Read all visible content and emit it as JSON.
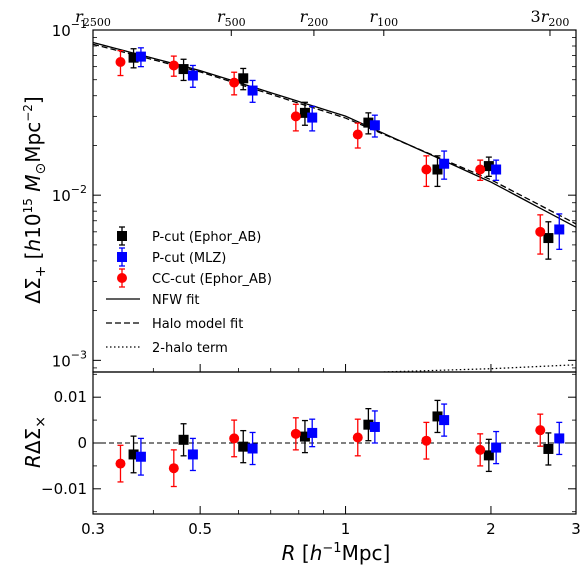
{
  "chart_data": [
    {
      "type": "scatter",
      "panel": "top",
      "xscale": "log",
      "yscale": "log",
      "xlim": [
        0.3,
        3.0
      ],
      "ylim": [
        0.00085,
        0.1
      ],
      "xticks": [
        {
          "value": 0.3,
          "label": "0.3"
        },
        {
          "value": 0.5,
          "label": "0.5"
        },
        {
          "value": 1,
          "label": "1"
        },
        {
          "value": 2,
          "label": "2"
        },
        {
          "value": 3,
          "label": "3"
        }
      ],
      "yticks": [
        {
          "value": 0.1,
          "base": "10",
          "exp": "−1"
        },
        {
          "value": 0.01,
          "base": "10",
          "exp": "−2"
        },
        {
          "value": 0.001,
          "base": "10",
          "exp": "−3"
        }
      ],
      "ylabel": {
        "delta_sigma": "ΔΣ",
        "subscript": "+",
        "unit_open": "[",
        "h": "h",
        "ten": "10",
        "exp15": "15",
        "m": "M",
        "odot": "⊙",
        "mpc": "Mpc",
        "exp_m2": "−2",
        "unit_close": "]"
      },
      "top_axis": [
        {
          "value": 0.3,
          "prefix": "",
          "main": "r",
          "sub": "2500"
        },
        {
          "value": 0.58,
          "prefix": "",
          "main": "r",
          "sub": "500"
        },
        {
          "value": 0.86,
          "prefix": "",
          "main": "r",
          "sub": "200"
        },
        {
          "value": 1.2,
          "prefix": "",
          "main": "r",
          "sub": "100"
        },
        {
          "value": 2.65,
          "prefix": "3",
          "main": "r",
          "sub": "200"
        }
      ],
      "series": [
        {
          "name": "P-cut (Ephor_AB)",
          "marker": "square",
          "color": "#000000",
          "points": [
            [
              0.364,
              0.068,
              0.009
            ],
            [
              0.462,
              0.058,
              0.0085
            ],
            [
              0.614,
              0.051,
              0.0075
            ],
            [
              0.824,
              0.0315,
              0.005
            ],
            [
              1.115,
              0.0275,
              0.004
            ],
            [
              1.55,
              0.0143,
              0.003
            ],
            [
              1.98,
              0.015,
              0.002
            ],
            [
              2.63,
              0.0055,
              0.0014
            ]
          ]
        },
        {
          "name": "P-cut (MLZ)",
          "marker": "square",
          "color": "#0000ff",
          "points": [
            [
              0.377,
              0.069,
              0.009
            ],
            [
              0.483,
              0.053,
              0.008
            ],
            [
              0.642,
              0.043,
              0.0065
            ],
            [
              0.853,
              0.0295,
              0.005
            ],
            [
              1.15,
              0.0265,
              0.004
            ],
            [
              1.6,
              0.0155,
              0.003
            ],
            [
              2.05,
              0.0143,
              0.002
            ],
            [
              2.77,
              0.0062,
              0.0015
            ]
          ]
        },
        {
          "name": "CC-cut (Ephor_AB)",
          "marker": "circle",
          "color": "#ff0000",
          "points": [
            [
              0.342,
              0.064,
              0.011
            ],
            [
              0.441,
              0.061,
              0.0085
            ],
            [
              0.588,
              0.048,
              0.0075
            ],
            [
              0.789,
              0.03,
              0.0055
            ],
            [
              1.06,
              0.0233,
              0.004
            ],
            [
              1.47,
              0.0143,
              0.003
            ],
            [
              1.9,
              0.0143,
              0.002
            ],
            [
              2.53,
              0.006,
              0.0016
            ]
          ]
        }
      ],
      "lines": [
        {
          "name": "NFW fit",
          "style": "solid",
          "x": [
            0.3,
            0.5,
            1.0,
            2.0,
            3.0
          ],
          "y": [
            0.084,
            0.0568,
            0.0301,
            0.012,
            0.0064
          ]
        },
        {
          "name": "Halo model fit",
          "style": "dashed",
          "x": [
            0.3,
            0.5,
            1.0,
            2.0,
            3.0
          ],
          "y": [
            0.082,
            0.0558,
            0.0293,
            0.0124,
            0.0067
          ]
        },
        {
          "name": "2-halo term",
          "style": "dotted",
          "x": [
            1.2,
            2.0,
            3.0
          ],
          "y": [
            0.00085,
            0.00089,
            0.00094
          ]
        }
      ],
      "legend_position": "lower-left"
    },
    {
      "type": "scatter",
      "panel": "bottom",
      "xscale": "log",
      "xlim": [
        0.3,
        3.0
      ],
      "ylim": [
        -0.0155,
        0.0155
      ],
      "yticks": [
        {
          "value": 0.01,
          "label": "0.01"
        },
        {
          "value": 0,
          "label": "0"
        },
        {
          "value": -0.01,
          "label": "−0.01"
        }
      ],
      "ylabel": {
        "r": "R",
        "delta_sigma": "ΔΣ",
        "subscript": "×"
      },
      "xlabel": {
        "r": "R",
        "open": "[",
        "h": "h",
        "exp": "−1",
        "mpc": "Mpc",
        "close": "]"
      },
      "zero_line": "dashed",
      "series": [
        {
          "name": "P-cut (Ephor_AB)",
          "marker": "square",
          "color": "#000000",
          "points": [
            [
              0.364,
              -0.0025,
              0.004
            ],
            [
              0.462,
              0.0007,
              0.0035
            ],
            [
              0.614,
              -0.0008,
              0.0035
            ],
            [
              0.824,
              0.0014,
              0.0035
            ],
            [
              1.115,
              0.004,
              0.0035
            ],
            [
              1.55,
              0.0058,
              0.0035
            ],
            [
              1.98,
              -0.0027,
              0.0035
            ],
            [
              2.63,
              -0.0013,
              0.0035
            ]
          ]
        },
        {
          "name": "P-cut (MLZ)",
          "marker": "square",
          "color": "#0000ff",
          "points": [
            [
              0.377,
              -0.003,
              0.004
            ],
            [
              0.483,
              -0.0025,
              0.0035
            ],
            [
              0.642,
              -0.0012,
              0.0035
            ],
            [
              0.853,
              0.0022,
              0.003
            ],
            [
              1.15,
              0.0035,
              0.0035
            ],
            [
              1.6,
              0.005,
              0.0035
            ],
            [
              2.05,
              -0.001,
              0.0035
            ],
            [
              2.77,
              0.001,
              0.0035
            ]
          ]
        },
        {
          "name": "CC-cut (Ephor_AB)",
          "marker": "circle",
          "color": "#ff0000",
          "points": [
            [
              0.342,
              -0.0045,
              0.004
            ],
            [
              0.441,
              -0.0055,
              0.004
            ],
            [
              0.588,
              0.001,
              0.004
            ],
            [
              0.789,
              0.002,
              0.0035
            ],
            [
              1.06,
              0.0012,
              0.004
            ],
            [
              1.47,
              0.0005,
              0.004
            ],
            [
              1.9,
              -0.0015,
              0.0035
            ],
            [
              2.53,
              0.0028,
              0.0035
            ]
          ]
        }
      ]
    }
  ]
}
